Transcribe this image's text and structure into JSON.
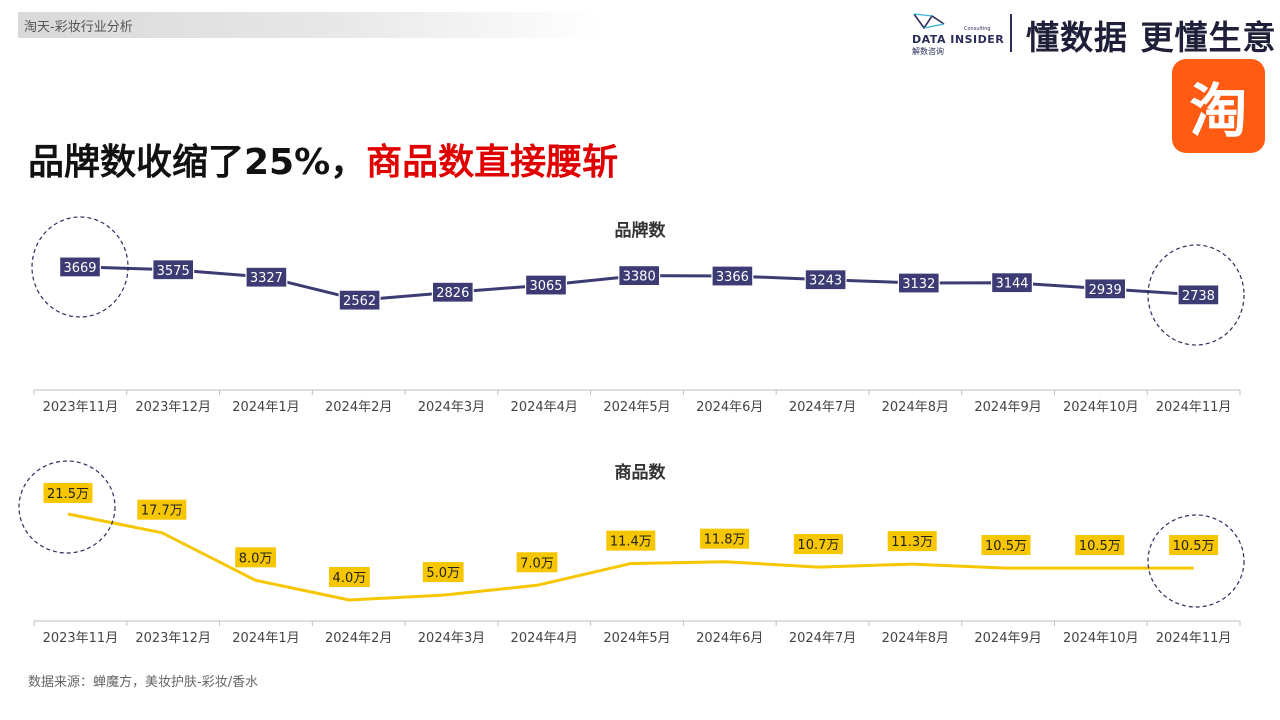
{
  "header": {
    "tag": "淘天-彩妆行业分析",
    "logo_name": "DATA INSIDER",
    "logo_sub": "解数咨询",
    "logo_consult": "Consulting",
    "slogan": "懂数据 更懂生意",
    "taobao_logo_char": "淘"
  },
  "headline": {
    "part1": "品牌数收缩了25%，",
    "part2": "商品数直接腰斩"
  },
  "source": "数据来源：蝉魔方，美妆护肤-彩妆/香水",
  "colors": {
    "brand_line": "#3d3b73",
    "product_line": "#f6c600",
    "headline_accent": "#e00000",
    "taobao_orange": "#ff5b12"
  },
  "chart_data": [
    {
      "type": "line",
      "title": "品牌数",
      "categories": [
        "2023年11月",
        "2023年12月",
        "2024年1月",
        "2024年2月",
        "2024年3月",
        "2024年4月",
        "2024年5月",
        "2024年6月",
        "2024年7月",
        "2024年8月",
        "2024年9月",
        "2024年10月",
        "2024年11月"
      ],
      "series": [
        {
          "values": [
            3669,
            3575,
            3327,
            2562,
            2826,
            3065,
            3380,
            3366,
            3243,
            3132,
            3144,
            2939,
            2738
          ]
        }
      ],
      "labels": [
        "3669",
        "3575",
        "3327",
        "2562",
        "2826",
        "3065",
        "3380",
        "3366",
        "3243",
        "3132",
        "3144",
        "2939",
        "2738"
      ],
      "highlight_circles": [
        0,
        12
      ],
      "grid": false,
      "legend": "none"
    },
    {
      "type": "line",
      "title": "商品数",
      "categories": [
        "2023年11月",
        "2023年12月",
        "2024年1月",
        "2024年2月",
        "2024年3月",
        "2024年4月",
        "2024年5月",
        "2024年6月",
        "2024年7月",
        "2024年8月",
        "2024年9月",
        "2024年10月",
        "2024年11月"
      ],
      "series": [
        {
          "values": [
            21.5,
            17.7,
            8.0,
            4.0,
            5.0,
            7.0,
            11.4,
            11.8,
            10.7,
            11.3,
            10.5,
            10.5,
            10.5
          ]
        }
      ],
      "labels": [
        "21.5万",
        "17.7万",
        "8.0万",
        "4.0万",
        "5.0万",
        "7.0万",
        "11.4万",
        "11.8万",
        "10.7万",
        "11.3万",
        "10.5万",
        "10.5万",
        "10.5万"
      ],
      "unit": "万",
      "highlight_circles": [
        0,
        12
      ],
      "grid": false,
      "legend": "none"
    }
  ]
}
